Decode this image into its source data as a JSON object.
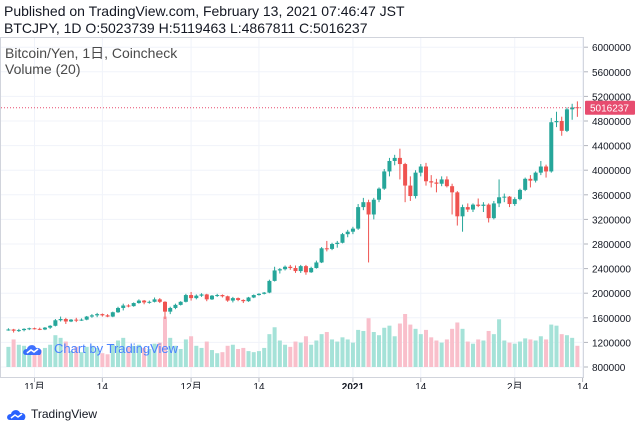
{
  "header": {
    "line1": "Published on TradingView.com, February 13, 2021 07:46:47 JST",
    "line2": "BTCJPY, 1D O:5023739 H:5119463 L:4867811 C:5016237"
  },
  "legend": {
    "symbol": "Bitcoin/Yen, 1日, Coincheck",
    "volume": "Volume (20)"
  },
  "watermark": "Chart by TradingView",
  "footer": {
    "brand": "TradingView"
  },
  "colors": {
    "up": "#26a69a",
    "down": "#ef5350",
    "up_volume": "#a5e2d8",
    "down_volume": "#f9bfcb",
    "price_line": "#e74c6f",
    "grid": "#f0f3fa",
    "text": "#131722"
  },
  "chart_data": {
    "type": "candlestick",
    "symbol": "BTCJPY",
    "interval": "1D",
    "last_price": 5016237,
    "last_price_label": "5016237",
    "y_ticks": [
      800000,
      1200000,
      1600000,
      2000000,
      2400000,
      2800000,
      3200000,
      3600000,
      4000000,
      4400000,
      4800000,
      5200000,
      5600000,
      6000000
    ],
    "y_tick_labels": [
      "800000",
      "1200000",
      "1600000",
      "2000000",
      "2400000",
      "2800000",
      "3200000",
      "3600000",
      "4000000",
      "4400000",
      "4800000",
      "5200000",
      "5600000",
      "6000000"
    ],
    "x_ticks": [
      {
        "date": "2020-11-01",
        "label": "11月",
        "bold": false
      },
      {
        "date": "2020-11-14",
        "label": "14",
        "bold": false
      },
      {
        "date": "2020-12-01",
        "label": "12月",
        "bold": false
      },
      {
        "date": "2020-12-14",
        "label": "14",
        "bold": false
      },
      {
        "date": "2021-01-01",
        "label": "2021",
        "bold": true
      },
      {
        "date": "2021-01-14",
        "label": "14",
        "bold": false
      },
      {
        "date": "2021-02-01",
        "label": "2月",
        "bold": false
      },
      {
        "date": "2021-02-14",
        "label": "14",
        "bold": false
      }
    ],
    "candles": [
      [
        "2020-10-27",
        1400000,
        1430000,
        1390000,
        1410000,
        0.38
      ],
      [
        "2020-10-28",
        1410000,
        1420000,
        1360000,
        1390000,
        0.52
      ],
      [
        "2020-10-29",
        1390000,
        1420000,
        1370000,
        1400000,
        0.42
      ],
      [
        "2020-10-30",
        1400000,
        1430000,
        1380000,
        1420000,
        0.4
      ],
      [
        "2020-10-31",
        1420000,
        1440000,
        1400000,
        1430000,
        0.3
      ],
      [
        "2020-11-01",
        1430000,
        1440000,
        1410000,
        1420000,
        0.24
      ],
      [
        "2020-11-02",
        1420000,
        1440000,
        1400000,
        1410000,
        0.32
      ],
      [
        "2020-11-03",
        1410000,
        1450000,
        1400000,
        1440000,
        0.36
      ],
      [
        "2020-11-04",
        1440000,
        1480000,
        1420000,
        1470000,
        0.42
      ],
      [
        "2020-11-05",
        1470000,
        1580000,
        1460000,
        1560000,
        0.6
      ],
      [
        "2020-11-06",
        1560000,
        1620000,
        1540000,
        1580000,
        0.55
      ],
      [
        "2020-11-07",
        1580000,
        1600000,
        1500000,
        1540000,
        0.48
      ],
      [
        "2020-11-08",
        1540000,
        1580000,
        1530000,
        1570000,
        0.3
      ],
      [
        "2020-11-09",
        1570000,
        1600000,
        1530000,
        1560000,
        0.38
      ],
      [
        "2020-11-10",
        1560000,
        1590000,
        1550000,
        1570000,
        0.28
      ],
      [
        "2020-11-11",
        1570000,
        1630000,
        1560000,
        1620000,
        0.38
      ],
      [
        "2020-11-12",
        1620000,
        1660000,
        1600000,
        1640000,
        0.4
      ],
      [
        "2020-11-13",
        1640000,
        1680000,
        1610000,
        1660000,
        0.36
      ],
      [
        "2020-11-14",
        1660000,
        1670000,
        1620000,
        1640000,
        0.26
      ],
      [
        "2020-11-15",
        1640000,
        1660000,
        1610000,
        1620000,
        0.24
      ],
      [
        "2020-11-16",
        1620000,
        1700000,
        1610000,
        1690000,
        0.42
      ],
      [
        "2020-11-17",
        1690000,
        1780000,
        1680000,
        1760000,
        0.5
      ],
      [
        "2020-11-18",
        1760000,
        1830000,
        1720000,
        1800000,
        0.55
      ],
      [
        "2020-11-19",
        1800000,
        1820000,
        1770000,
        1790000,
        0.38
      ],
      [
        "2020-11-20",
        1790000,
        1850000,
        1780000,
        1840000,
        0.4
      ],
      [
        "2020-11-21",
        1840000,
        1900000,
        1830000,
        1880000,
        0.42
      ],
      [
        "2020-11-22",
        1880000,
        1890000,
        1820000,
        1850000,
        0.36
      ],
      [
        "2020-11-23",
        1850000,
        1880000,
        1830000,
        1860000,
        0.34
      ],
      [
        "2020-11-24",
        1860000,
        1930000,
        1850000,
        1900000,
        0.44
      ],
      [
        "2020-11-25",
        1900000,
        1920000,
        1840000,
        1860000,
        0.46
      ],
      [
        "2020-11-26",
        1860000,
        1870000,
        1580000,
        1700000,
        0.95
      ],
      [
        "2020-11-27",
        1700000,
        1780000,
        1660000,
        1760000,
        0.55
      ],
      [
        "2020-11-28",
        1760000,
        1830000,
        1740000,
        1810000,
        0.4
      ],
      [
        "2020-11-29",
        1810000,
        1870000,
        1800000,
        1860000,
        0.34
      ],
      [
        "2020-11-30",
        1860000,
        1990000,
        1850000,
        1970000,
        0.52
      ],
      [
        "2020-12-01",
        1970000,
        2020000,
        1880000,
        1920000,
        0.58
      ],
      [
        "2020-12-02",
        1920000,
        1980000,
        1900000,
        1960000,
        0.4
      ],
      [
        "2020-12-03",
        1960000,
        2000000,
        1940000,
        1980000,
        0.36
      ],
      [
        "2020-12-04",
        1980000,
        1990000,
        1870000,
        1900000,
        0.48
      ],
      [
        "2020-12-05",
        1900000,
        1970000,
        1890000,
        1960000,
        0.32
      ],
      [
        "2020-12-06",
        1960000,
        1990000,
        1940000,
        1970000,
        0.26
      ],
      [
        "2020-12-07",
        1970000,
        1980000,
        1930000,
        1950000,
        0.28
      ],
      [
        "2020-12-08",
        1950000,
        1960000,
        1860000,
        1880000,
        0.4
      ],
      [
        "2020-12-09",
        1880000,
        1940000,
        1850000,
        1920000,
        0.42
      ],
      [
        "2020-12-10",
        1920000,
        1930000,
        1870000,
        1890000,
        0.34
      ],
      [
        "2020-12-11",
        1890000,
        1900000,
        1840000,
        1870000,
        0.36
      ],
      [
        "2020-12-12",
        1870000,
        1940000,
        1860000,
        1930000,
        0.3
      ],
      [
        "2020-12-13",
        1930000,
        1980000,
        1920000,
        1970000,
        0.28
      ],
      [
        "2020-12-14",
        1970000,
        2000000,
        1960000,
        1990000,
        0.3
      ],
      [
        "2020-12-15",
        1990000,
        2020000,
        1980000,
        2010000,
        0.36
      ],
      [
        "2020-12-16",
        2010000,
        2220000,
        2000000,
        2200000,
        0.62
      ],
      [
        "2020-12-17",
        2200000,
        2430000,
        2190000,
        2370000,
        0.75
      ],
      [
        "2020-12-18",
        2370000,
        2410000,
        2320000,
        2390000,
        0.5
      ],
      [
        "2020-12-19",
        2390000,
        2450000,
        2370000,
        2430000,
        0.42
      ],
      [
        "2020-12-20",
        2430000,
        2460000,
        2380000,
        2410000,
        0.38
      ],
      [
        "2020-12-21",
        2410000,
        2450000,
        2330000,
        2360000,
        0.48
      ],
      [
        "2020-12-22",
        2360000,
        2460000,
        2330000,
        2440000,
        0.46
      ],
      [
        "2020-12-23",
        2440000,
        2460000,
        2300000,
        2340000,
        0.58
      ],
      [
        "2020-12-24",
        2340000,
        2430000,
        2330000,
        2410000,
        0.42
      ],
      [
        "2020-12-25",
        2410000,
        2530000,
        2400000,
        2500000,
        0.5
      ],
      [
        "2020-12-26",
        2500000,
        2750000,
        2490000,
        2730000,
        0.62
      ],
      [
        "2020-12-27",
        2730000,
        2850000,
        2680000,
        2720000,
        0.66
      ],
      [
        "2020-12-28",
        2720000,
        2820000,
        2700000,
        2800000,
        0.52
      ],
      [
        "2020-12-29",
        2800000,
        2850000,
        2740000,
        2820000,
        0.48
      ],
      [
        "2020-12-30",
        2820000,
        2980000,
        2810000,
        2960000,
        0.56
      ],
      [
        "2020-12-31",
        2960000,
        3030000,
        2910000,
        3000000,
        0.52
      ],
      [
        "2021-01-01",
        3000000,
        3080000,
        2960000,
        3050000,
        0.46
      ],
      [
        "2021-01-02",
        3050000,
        3450000,
        3030000,
        3400000,
        0.7
      ],
      [
        "2021-01-03",
        3400000,
        3550000,
        3350000,
        3480000,
        0.68
      ],
      [
        "2021-01-04",
        3480000,
        3520000,
        2500000,
        3280000,
        0.92
      ],
      [
        "2021-01-05",
        3280000,
        3550000,
        3200000,
        3520000,
        0.66
      ],
      [
        "2021-01-06",
        3520000,
        3720000,
        3480000,
        3700000,
        0.6
      ],
      [
        "2021-01-07",
        3700000,
        4020000,
        3680000,
        3980000,
        0.74
      ],
      [
        "2021-01-08",
        3980000,
        4200000,
        3900000,
        4150000,
        0.78
      ],
      [
        "2021-01-09",
        4150000,
        4250000,
        4080000,
        4200000,
        0.58
      ],
      [
        "2021-01-10",
        4200000,
        4350000,
        3850000,
        4100000,
        0.82
      ],
      [
        "2021-01-11",
        4100000,
        4120000,
        3480000,
        3750000,
        1.0
      ],
      [
        "2021-01-12",
        3750000,
        3900000,
        3500000,
        3580000,
        0.8
      ],
      [
        "2021-01-13",
        3580000,
        4000000,
        3540000,
        3960000,
        0.72
      ],
      [
        "2021-01-14",
        3960000,
        4100000,
        3900000,
        4060000,
        0.62
      ],
      [
        "2021-01-15",
        4060000,
        4120000,
        3750000,
        3820000,
        0.7
      ],
      [
        "2021-01-16",
        3820000,
        3920000,
        3720000,
        3800000,
        0.56
      ],
      [
        "2021-01-17",
        3800000,
        3860000,
        3640000,
        3780000,
        0.5
      ],
      [
        "2021-01-18",
        3780000,
        3900000,
        3740000,
        3850000,
        0.46
      ],
      [
        "2021-01-19",
        3850000,
        3900000,
        3720000,
        3740000,
        0.52
      ],
      [
        "2021-01-20",
        3740000,
        3780000,
        3280000,
        3640000,
        0.72
      ],
      [
        "2021-01-21",
        3640000,
        3660000,
        3100000,
        3250000,
        0.84
      ],
      [
        "2021-01-22",
        3250000,
        3440000,
        3000000,
        3400000,
        0.72
      ],
      [
        "2021-01-23",
        3400000,
        3460000,
        3320000,
        3360000,
        0.48
      ],
      [
        "2021-01-24",
        3360000,
        3460000,
        3320000,
        3440000,
        0.44
      ],
      [
        "2021-01-25",
        3440000,
        3540000,
        3400000,
        3420000,
        0.52
      ],
      [
        "2021-01-26",
        3420000,
        3480000,
        3320000,
        3440000,
        0.5
      ],
      [
        "2021-01-27",
        3440000,
        3460000,
        3150000,
        3220000,
        0.68
      ],
      [
        "2021-01-28",
        3220000,
        3500000,
        3200000,
        3460000,
        0.62
      ],
      [
        "2021-01-29",
        3460000,
        3850000,
        3400000,
        3560000,
        0.9
      ],
      [
        "2021-01-30",
        3560000,
        3620000,
        3480000,
        3570000,
        0.5
      ],
      [
        "2021-01-31",
        3570000,
        3580000,
        3400000,
        3450000,
        0.46
      ],
      [
        "2021-02-01",
        3450000,
        3560000,
        3420000,
        3530000,
        0.44
      ],
      [
        "2021-02-02",
        3530000,
        3700000,
        3510000,
        3680000,
        0.48
      ],
      [
        "2021-02-03",
        3680000,
        3880000,
        3660000,
        3860000,
        0.54
      ],
      [
        "2021-02-04",
        3860000,
        3920000,
        3720000,
        3830000,
        0.52
      ],
      [
        "2021-02-05",
        3830000,
        3980000,
        3800000,
        3960000,
        0.5
      ],
      [
        "2021-02-06",
        3960000,
        4150000,
        3920000,
        4060000,
        0.58
      ],
      [
        "2021-02-07",
        4060000,
        4090000,
        3880000,
        3980000,
        0.52
      ],
      [
        "2021-02-08",
        3980000,
        4850000,
        3960000,
        4780000,
        0.8
      ],
      [
        "2021-02-09",
        4780000,
        4950000,
        4700000,
        4800000,
        0.78
      ],
      [
        "2021-02-10",
        4800000,
        4870000,
        4560000,
        4640000,
        0.62
      ],
      [
        "2021-02-11",
        4640000,
        5020000,
        4620000,
        4990000,
        0.6
      ],
      [
        "2021-02-12",
        4990000,
        5080000,
        4820000,
        5020000,
        0.55
      ],
      [
        "2021-02-13",
        5023739,
        5119463,
        4867811,
        5016237,
        0.4
      ]
    ]
  }
}
